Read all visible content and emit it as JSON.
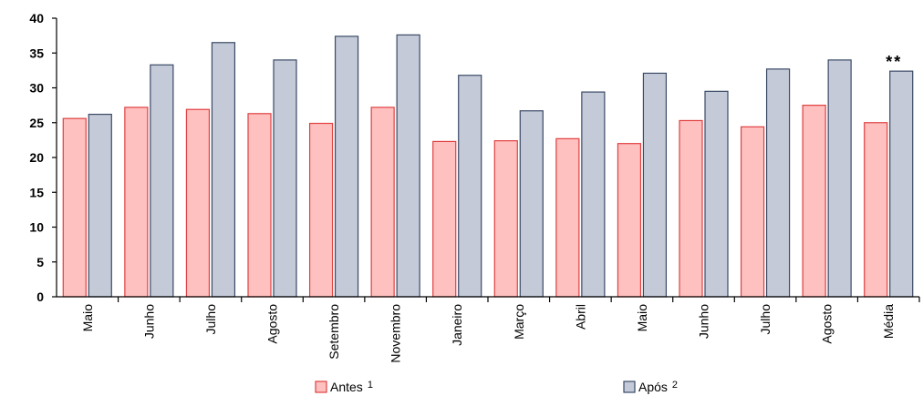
{
  "chart_data": {
    "type": "bar",
    "title": "",
    "xlabel": "",
    "ylabel": "",
    "ylim": [
      0,
      40
    ],
    "yticks": [
      0,
      5,
      10,
      15,
      20,
      25,
      30,
      35,
      40
    ],
    "grid": false,
    "legend_position": "bottom",
    "categories": [
      "Maio",
      "Junho",
      "Julho",
      "Agosto",
      "Setembro",
      "Novembro",
      "Janeiro",
      "Março",
      "Abril",
      "Maio",
      "Junho",
      "Julho",
      "Agosto",
      "Média"
    ],
    "series": [
      {
        "name": "Antes",
        "marker": "1",
        "color": "#ffc0c0",
        "edge_color": "#e04040",
        "values": [
          25.6,
          27.2,
          26.9,
          26.3,
          24.9,
          27.2,
          22.3,
          22.4,
          22.7,
          22.0,
          25.3,
          24.4,
          27.5,
          25.0
        ]
      },
      {
        "name": "Após",
        "marker": "2",
        "color": "#c5cad8",
        "edge_color": "#3a4a66",
        "values": [
          26.2,
          33.3,
          36.5,
          34.0,
          37.4,
          37.6,
          31.8,
          26.7,
          29.4,
          32.1,
          29.5,
          32.7,
          34.0,
          32.4
        ]
      }
    ],
    "annotations": [
      {
        "category_index": 13,
        "series_index": 1,
        "text": "**"
      }
    ]
  }
}
